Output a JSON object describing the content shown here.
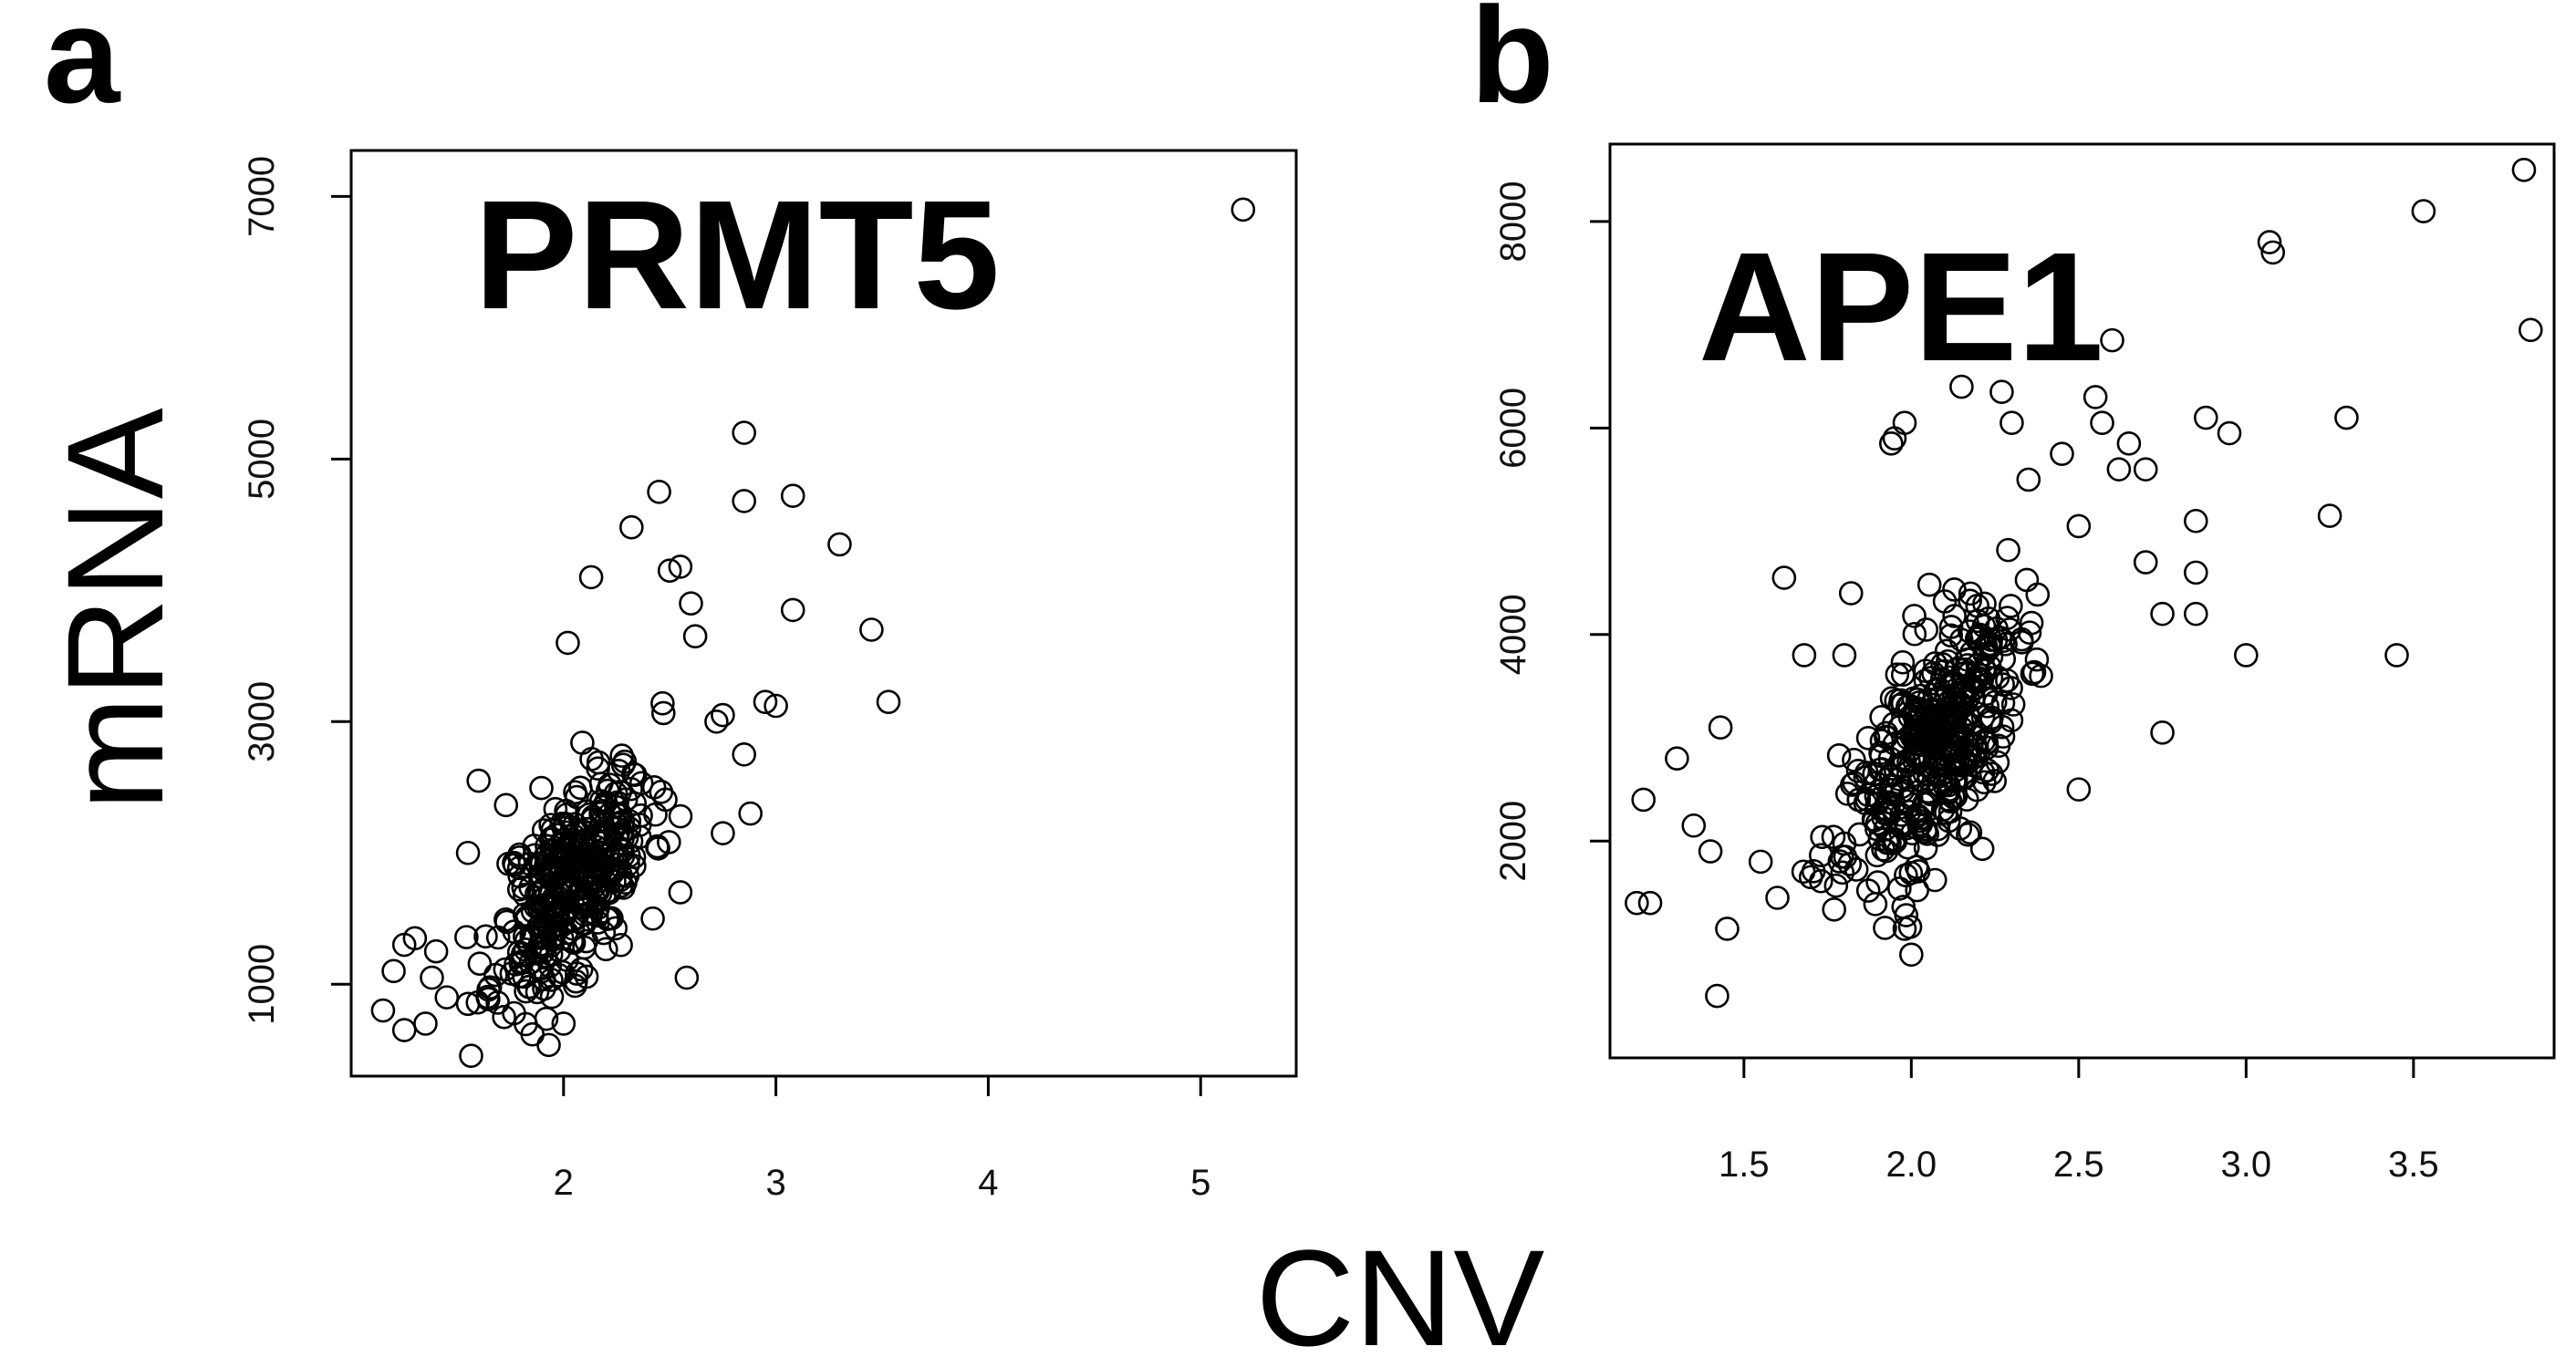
{
  "figure": {
    "ylabel": "mRNA",
    "xlabel": "CNV"
  },
  "chart_data": [
    {
      "type": "scatter",
      "panel": "a",
      "title": "PRMT5",
      "xlabel": "CNV",
      "ylabel": "mRNA",
      "xlim": [
        1.0,
        5.45
      ],
      "ylim": [
        300,
        7350
      ],
      "xticks": [
        2,
        3,
        4,
        5
      ],
      "xtick_labels": [
        "2",
        "3",
        "4",
        "5"
      ],
      "yticks": [
        1000,
        3000,
        5000,
        7000
      ],
      "ytick_labels": [
        "1000",
        "3000",
        "5000",
        "7000"
      ],
      "cluster": {
        "center": [
          2.05,
          1800
        ],
        "spread": [
          0.18,
          450
        ],
        "count": 380,
        "seed": 11
      },
      "points": [
        [
          5.2,
          6900
        ],
        [
          2.85,
          5200
        ],
        [
          2.45,
          4750
        ],
        [
          2.85,
          4680
        ],
        [
          3.08,
          4720
        ],
        [
          2.32,
          4480
        ],
        [
          3.3,
          4350
        ],
        [
          2.5,
          4150
        ],
        [
          2.55,
          4180
        ],
        [
          2.13,
          4100
        ],
        [
          2.6,
          3900
        ],
        [
          3.08,
          3850
        ],
        [
          3.45,
          3700
        ],
        [
          2.62,
          3650
        ],
        [
          2.02,
          3600
        ],
        [
          3.53,
          3150
        ],
        [
          2.95,
          3150
        ],
        [
          3.0,
          3120
        ],
        [
          2.75,
          3050
        ],
        [
          2.72,
          3000
        ],
        [
          2.85,
          2750
        ],
        [
          2.88,
          2300
        ],
        [
          2.75,
          2150
        ],
        [
          1.6,
          2550
        ],
        [
          1.55,
          2000
        ],
        [
          1.25,
          1300
        ],
        [
          1.3,
          1350
        ],
        [
          1.2,
          1100
        ],
        [
          1.15,
          800
        ],
        [
          1.25,
          650
        ],
        [
          1.35,
          700
        ],
        [
          1.45,
          900
        ],
        [
          1.55,
          850
        ],
        [
          1.72,
          750
        ],
        [
          2.0,
          700
        ],
        [
          2.58,
          1050
        ],
        [
          2.42,
          1500
        ],
        [
          2.55,
          1700
        ],
        [
          1.38,
          1050
        ],
        [
          1.4,
          1250
        ]
      ]
    },
    {
      "type": "scatter",
      "panel": "b",
      "title": "APE1",
      "xlabel": "CNV",
      "ylabel": "mRNA",
      "xlim": [
        1.1,
        3.92
      ],
      "ylim": [
        -100,
        8750
      ],
      "xticks": [
        1.5,
        2.0,
        2.5,
        3.0,
        3.5
      ],
      "xtick_labels": [
        "1.5",
        "2.0",
        "2.5",
        "3.0",
        "3.5"
      ],
      "yticks": [
        2000,
        4000,
        6000,
        8000
      ],
      "ytick_labels": [
        "2000",
        "4000",
        "6000",
        "8000"
      ],
      "cluster": {
        "center": [
          2.06,
          2900
        ],
        "spread": [
          0.13,
          650
        ],
        "count": 420,
        "seed": 23
      },
      "points": [
        [
          3.83,
          8500
        ],
        [
          3.53,
          8100
        ],
        [
          3.07,
          7800
        ],
        [
          3.08,
          7700
        ],
        [
          3.85,
          6950
        ],
        [
          2.6,
          6850
        ],
        [
          2.15,
          6400
        ],
        [
          2.27,
          6350
        ],
        [
          2.55,
          6300
        ],
        [
          2.3,
          6050
        ],
        [
          2.57,
          6050
        ],
        [
          2.88,
          6100
        ],
        [
          2.95,
          5950
        ],
        [
          2.65,
          5850
        ],
        [
          3.3,
          6100
        ],
        [
          2.45,
          5750
        ],
        [
          2.62,
          5600
        ],
        [
          2.7,
          5600
        ],
        [
          2.35,
          5500
        ],
        [
          3.25,
          5150
        ],
        [
          2.85,
          5100
        ],
        [
          2.5,
          5050
        ],
        [
          1.95,
          5900
        ],
        [
          1.98,
          6050
        ],
        [
          1.94,
          5850
        ],
        [
          2.7,
          4700
        ],
        [
          2.85,
          4600
        ],
        [
          2.75,
          4200
        ],
        [
          2.85,
          4200
        ],
        [
          3.0,
          3800
        ],
        [
          3.45,
          3800
        ],
        [
          2.75,
          3050
        ],
        [
          1.62,
          4550
        ],
        [
          1.82,
          4400
        ],
        [
          1.68,
          3800
        ],
        [
          1.8,
          3800
        ],
        [
          1.43,
          3100
        ],
        [
          1.3,
          2800
        ],
        [
          1.2,
          2400
        ],
        [
          1.18,
          1400
        ],
        [
          1.22,
          1400
        ],
        [
          1.42,
          500
        ],
        [
          1.45,
          1150
        ],
        [
          1.6,
          1450
        ],
        [
          1.55,
          1800
        ],
        [
          1.98,
          1150
        ],
        [
          2.0,
          900
        ],
        [
          2.5,
          2500
        ],
        [
          1.35,
          2150
        ],
        [
          1.4,
          1900
        ],
        [
          1.7,
          1650
        ],
        [
          1.9,
          1600
        ]
      ]
    }
  ]
}
